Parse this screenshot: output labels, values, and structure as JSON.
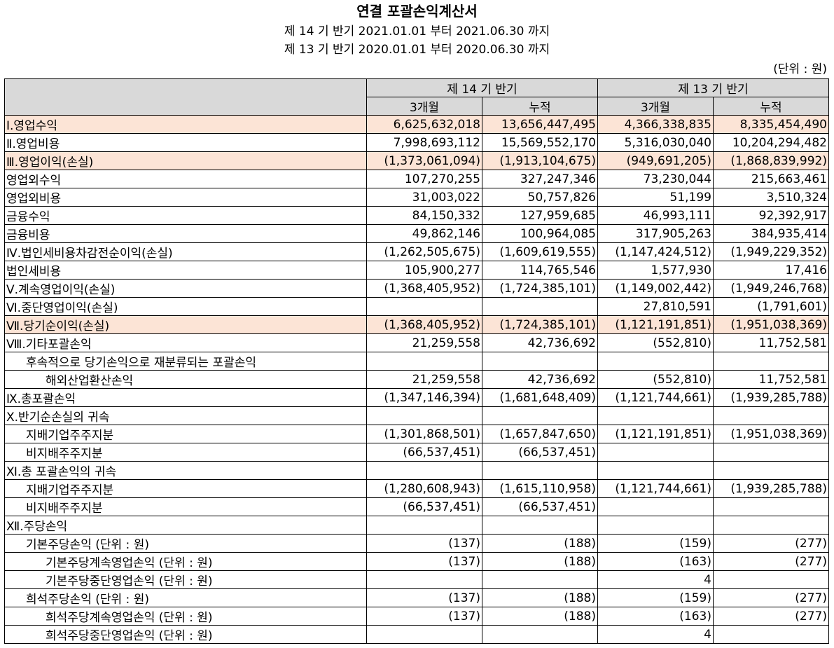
{
  "title": "연결 포괄손익계산서",
  "periods": [
    "제 14 기 반기 2021.01.01 부터 2021.06.30 까지",
    "제 13 기 반기 2020.01.01 부터 2020.06.30 까지"
  ],
  "unit": "(단위 : 원)",
  "header": {
    "groups": [
      "제 14 기 반기",
      "제 13 기 반기"
    ],
    "subs": [
      "3개월",
      "누적",
      "3개월",
      "누적"
    ]
  },
  "rows": [
    {
      "label": "Ⅰ.영업수익",
      "values": [
        "6,625,632,018",
        "13,656,447,495",
        "4,366,338,835",
        "8,335,454,490"
      ]
    },
    {
      "label": "Ⅱ.영업비용",
      "values": [
        "7,998,693,112",
        "15,569,552,170",
        "5,316,030,040",
        "10,204,294,482"
      ]
    },
    {
      "label": "Ⅲ.영업이익(손실)",
      "values": [
        "(1,373,061,094)",
        "(1,913,104,675)",
        "(949,691,205)",
        "(1,868,839,992)"
      ]
    },
    {
      "label": "영업외수익",
      "values": [
        "107,270,255",
        "327,247,346",
        "73,230,044",
        "215,663,461"
      ]
    },
    {
      "label": "영업외비용",
      "values": [
        "31,003,022",
        "50,757,826",
        "51,199",
        "3,510,324"
      ]
    },
    {
      "label": "금융수익",
      "values": [
        "84,150,332",
        "127,959,685",
        "46,993,111",
        "92,392,917"
      ]
    },
    {
      "label": "금융비용",
      "values": [
        "49,862,146",
        "100,964,085",
        "317,905,263",
        "384,935,414"
      ]
    },
    {
      "label": "Ⅳ.법인세비용차감전순이익(손실)",
      "values": [
        "(1,262,505,675)",
        "(1,609,619,555)",
        "(1,147,424,512)",
        "(1,949,229,352)"
      ]
    },
    {
      "label": "법인세비용",
      "values": [
        "105,900,277",
        "114,765,546",
        "1,577,930",
        "17,416"
      ]
    },
    {
      "label": "Ⅴ.계속영업이익(손실)",
      "values": [
        "(1,368,405,952)",
        "(1,724,385,101)",
        "(1,149,002,442)",
        "(1,949,246,768)"
      ]
    },
    {
      "label": "Ⅵ.중단영업이익(손실)",
      "values": [
        "",
        "",
        "27,810,591",
        "(1,791,601)"
      ]
    },
    {
      "label": "Ⅶ.당기순이익(손실)",
      "values": [
        "(1,368,405,952)",
        "(1,724,385,101)",
        "(1,121,191,851)",
        "(1,951,038,369)"
      ]
    },
    {
      "label": "Ⅷ.기타포괄손익",
      "values": [
        "21,259,558",
        "42,736,692",
        "(552,810)",
        "11,752,581"
      ]
    },
    {
      "label": "후속적으로 당기손익으로 재분류되는 포괄손익",
      "values": [
        "",
        "",
        "",
        ""
      ]
    },
    {
      "label": "해외산업환산손익",
      "values": [
        "21,259,558",
        "42,736,692",
        "(552,810)",
        "11,752,581"
      ]
    },
    {
      "label": "Ⅸ.총포괄손익",
      "values": [
        "(1,347,146,394)",
        "(1,681,648,409)",
        "(1,121,744,661)",
        "(1,939,285,788)"
      ]
    },
    {
      "label": "Ⅹ.반기순손실의 귀속",
      "values": [
        "",
        "",
        "",
        ""
      ]
    },
    {
      "label": "지배기업주주지분",
      "values": [
        "(1,301,868,501)",
        "(1,657,847,650)",
        "(1,121,191,851)",
        "(1,951,038,369)"
      ]
    },
    {
      "label": "비지배주주지분",
      "values": [
        "(66,537,451)",
        "(66,537,451)",
        "",
        ""
      ]
    },
    {
      "label": "Ⅺ.총 포괄손익의 귀속",
      "values": [
        "",
        "",
        "",
        ""
      ]
    },
    {
      "label": "지배기업주주지분",
      "values": [
        "(1,280,608,943)",
        "(1,615,110,958)",
        "(1,121,744,661)",
        "(1,939,285,788)"
      ]
    },
    {
      "label": "비지배주주지분",
      "values": [
        "(66,537,451)",
        "(66,537,451)",
        "",
        ""
      ]
    },
    {
      "label": "Ⅻ.주당손익",
      "values": [
        "",
        "",
        "",
        ""
      ]
    },
    {
      "label": "기본주당손익 (단위 : 원)",
      "values": [
        "(137)",
        "(188)",
        "(159)",
        "(277)"
      ]
    },
    {
      "label": "기본주당계속영업손익 (단위 : 원)",
      "values": [
        "(137)",
        "(188)",
        "(163)",
        "(277)"
      ]
    },
    {
      "label": "기본주당중단영업손익 (단위 : 원)",
      "values": [
        "",
        "",
        "4",
        ""
      ]
    },
    {
      "label": "희석주당손익 (단위 : 원)",
      "values": [
        "(137)",
        "(188)",
        "(159)",
        "(277)"
      ]
    },
    {
      "label": "희석주당계속영업손익 (단위 : 원)",
      "values": [
        "(137)",
        "(188)",
        "(163)",
        "(277)"
      ]
    },
    {
      "label": "희석주당중단영업손익 (단위 : 원)",
      "values": [
        "",
        "",
        "4",
        ""
      ]
    }
  ],
  "highlight_color": "#fce4d6",
  "header_color": "#d9d9d9"
}
